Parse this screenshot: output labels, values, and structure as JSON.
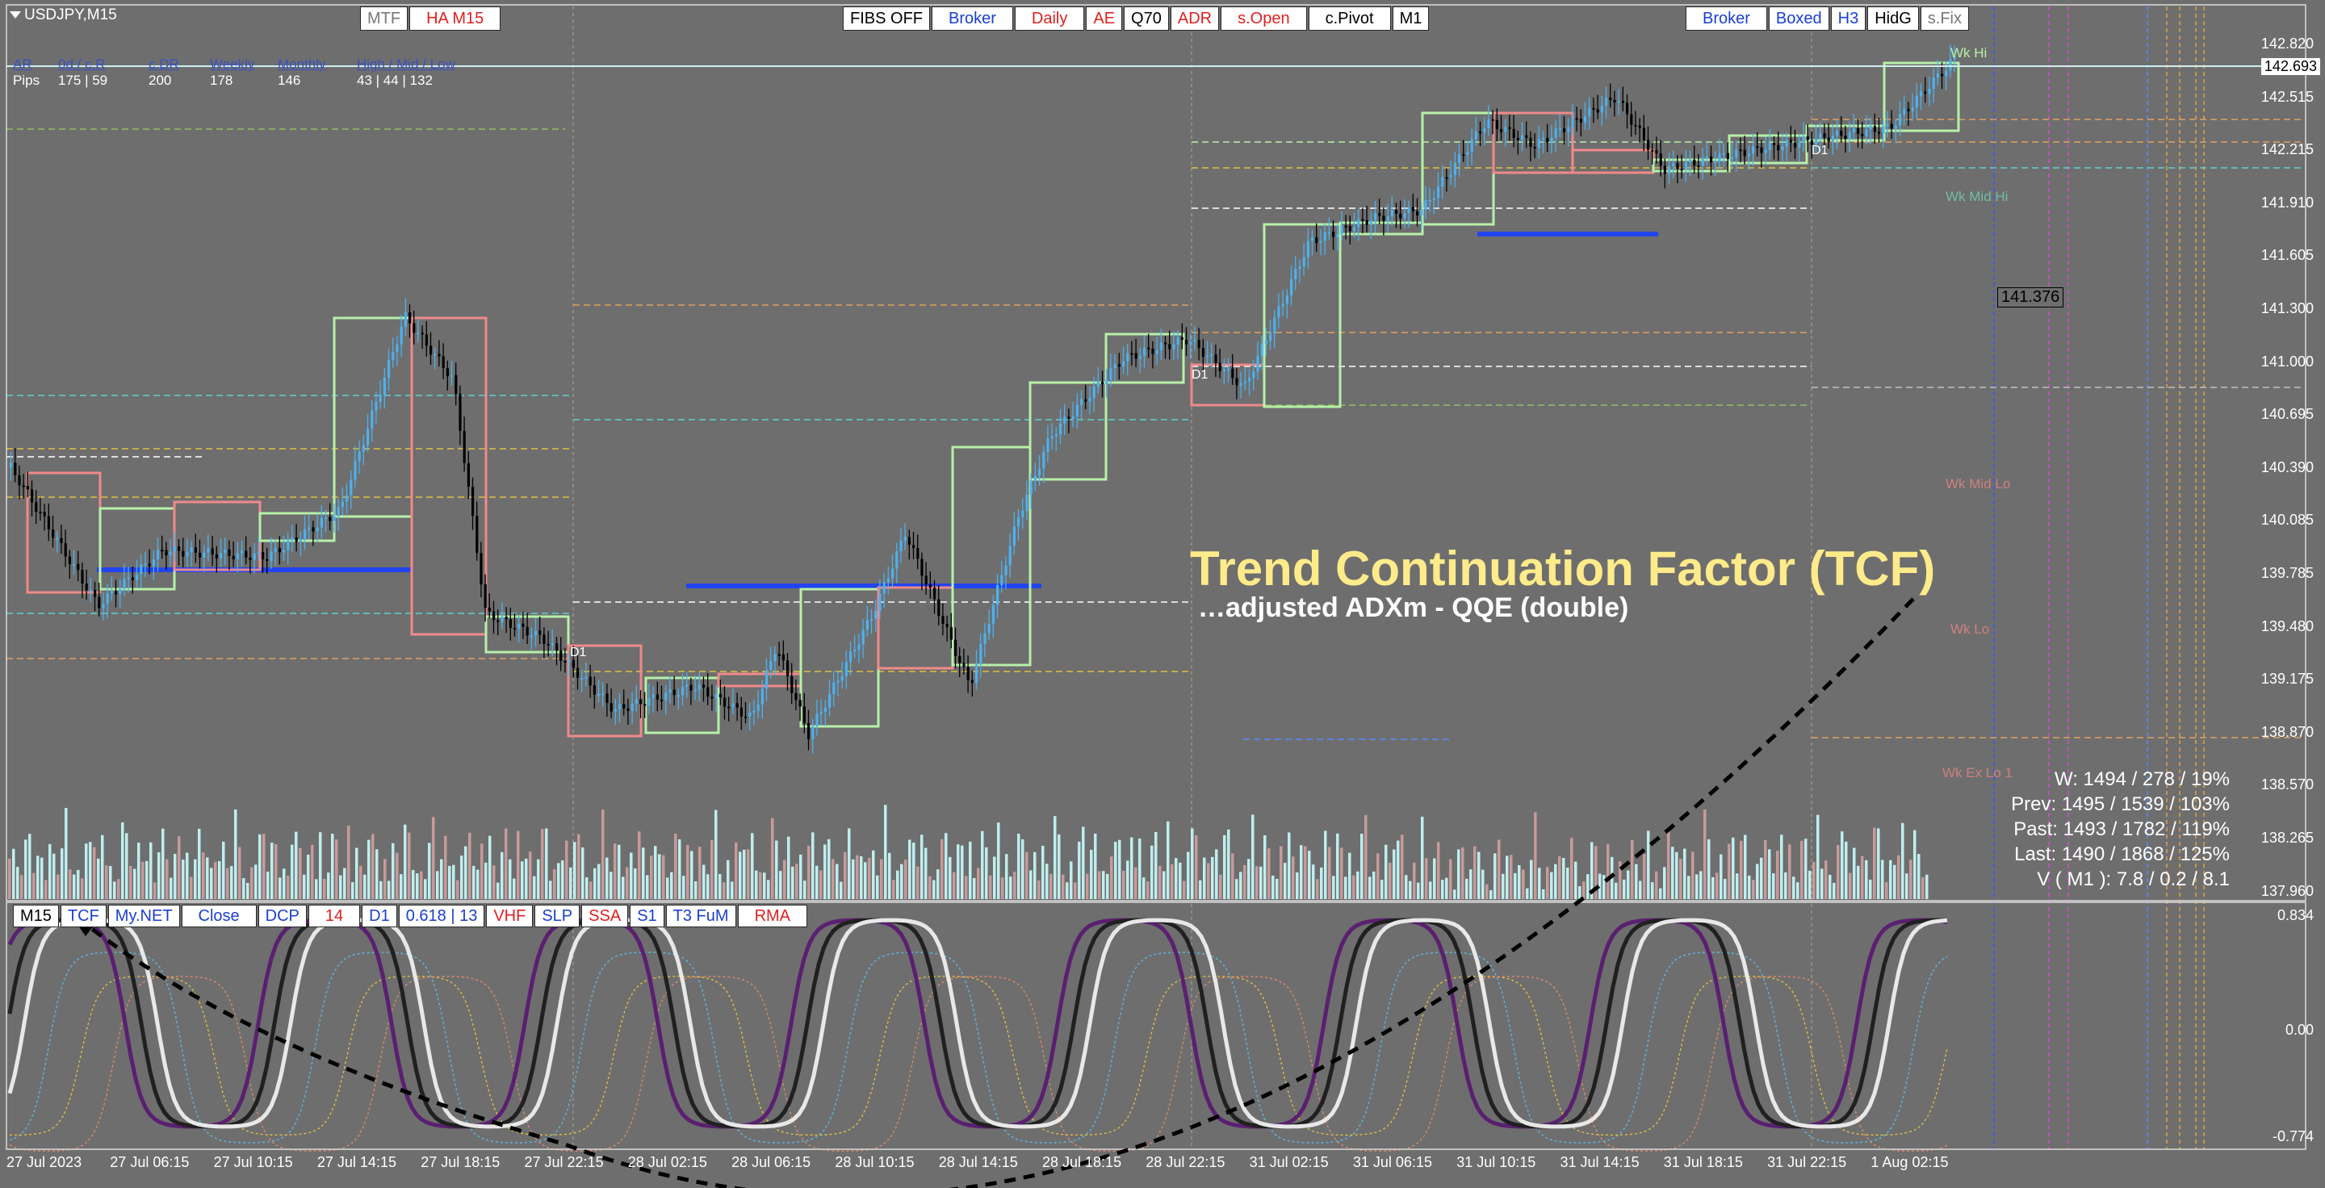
{
  "symbol": "USDJPY,M15",
  "top_left_buttons": [
    "MTF",
    "HA M15"
  ],
  "top_center_buttons": [
    "FIBS OFF",
    "Broker",
    "Daily",
    "AE",
    "Q70",
    "ADR",
    "s.Open",
    "c.Pivot",
    "M1"
  ],
  "top_right_buttons": [
    "Broker",
    "Boxed",
    "H3",
    "HidG",
    "s.Fix"
  ],
  "stats": {
    "headers": [
      "AR",
      "0d / c.R",
      "c.DR",
      "Weekly",
      "Monthly",
      "High / Mid / Low"
    ],
    "values": [
      "Pips",
      "175 | 59",
      "200",
      "178",
      "146",
      "43  |  44  |  132"
    ]
  },
  "current_price": "142.693",
  "marker_price": "141.376",
  "price_axis": [
    "142.820",
    "142.515",
    "142.215",
    "141.910",
    "141.605",
    "141.300",
    "141.000",
    "140.695",
    "140.390",
    "140.085",
    "139.785",
    "139.480",
    "139.175",
    "138.870",
    "138.570",
    "138.265",
    "137.960"
  ],
  "indicator_axis": [
    "0.834",
    "0.00",
    "-0.774"
  ],
  "time_axis": [
    "27 Jul 2023",
    "27 Jul 06:15",
    "27 Jul 10:15",
    "27 Jul 14:15",
    "27 Jul 18:15",
    "27 Jul 22:15",
    "28 Jul 02:15",
    "28 Jul 06:15",
    "28 Jul 10:15",
    "28 Jul 14:15",
    "28 Jul 18:15",
    "28 Jul 22:15",
    "31 Jul 02:15",
    "31 Jul 06:15",
    "31 Jul 10:15",
    "31 Jul 14:15",
    "31 Jul 18:15",
    "31 Jul 22:15",
    "1 Aug 02:15"
  ],
  "weekly_levels": [
    "Wk Hi",
    "Wk Mid Hi",
    "Wk Mid Lo",
    "Wk Lo",
    "Wk Ex Lo 1"
  ],
  "day_labels": [
    "D1",
    "D1",
    "D1"
  ],
  "annotation": {
    "title": "Trend Continuation Factor (TCF)",
    "subtitle": "…adjusted ADXm - QQE (double)"
  },
  "right_stats": [
    "W: 1494 / 278 / 19%",
    "Prev: 1495 / 1539 / 103%",
    "Past: 1493 / 1782 / 119%",
    "Last: 1490 / 1868 / 125%",
    "V ( M1 ): 7.8 / 0.2 / 8.1"
  ],
  "indicator_buttons": [
    "M15",
    "TCF",
    "My.NET",
    "Close",
    "DCP",
    "14",
    "D1",
    "0.618 | 13",
    "VHF",
    "SLP",
    "SSA",
    "S1",
    "T3 FuM",
    "RMA"
  ],
  "colors": {
    "background": "#6e6e6e",
    "bull_box": "#b7f0a8",
    "bear_box": "#f08a8a",
    "ha_up": "#4db1ee",
    "ha_down": "#000000",
    "volume_up": "#bfeeee",
    "volume_down": "#c89a9a",
    "title": "#ffeb8a"
  }
}
